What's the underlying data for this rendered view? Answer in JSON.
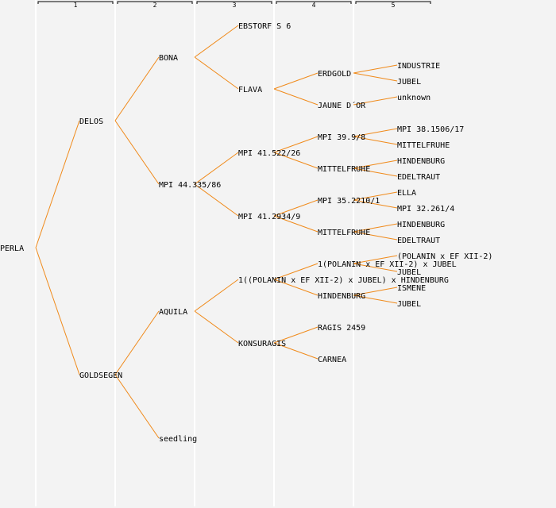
{
  "colors": {
    "background": "#f3f3f3",
    "link": "#f08a1a",
    "column_line": "#ffffff",
    "text": "#000000"
  },
  "columns": [
    "1",
    "2",
    "3",
    "4",
    "5"
  ],
  "tree": {
    "name": "PERLA",
    "children": [
      {
        "name": "DELOS",
        "children": [
          {
            "name": "BONA",
            "children": [
              {
                "name": "EBSTORF S 6"
              },
              {
                "name": "FLAVA",
                "children": [
                  {
                    "name": "ERDGOLD",
                    "children": [
                      {
                        "name": "INDUSTRIE"
                      },
                      {
                        "name": "JUBEL"
                      }
                    ]
                  },
                  {
                    "name": "JAUNE D´OR",
                    "children": [
                      {
                        "name": "unknown"
                      }
                    ]
                  }
                ]
              }
            ]
          },
          {
            "name": "MPI 44.335/86",
            "children": [
              {
                "name": "MPI 41.522/26",
                "children": [
                  {
                    "name": "MPI 39.9/8",
                    "children": [
                      {
                        "name": "MPI 38.1506/17"
                      },
                      {
                        "name": "MITTELFRUHE"
                      }
                    ]
                  },
                  {
                    "name": "MITTELFRUHE",
                    "children": [
                      {
                        "name": "HINDENBURG"
                      },
                      {
                        "name": "EDELTRAUT"
                      }
                    ]
                  }
                ]
              },
              {
                "name": "MPI 41.2934/9",
                "children": [
                  {
                    "name": "MPI 35.2210/1",
                    "children": [
                      {
                        "name": "ELLA"
                      },
                      {
                        "name": "MPI 32.261/4"
                      }
                    ]
                  },
                  {
                    "name": "MITTELFRUHE",
                    "children": [
                      {
                        "name": "HINDENBURG"
                      },
                      {
                        "name": "EDELTRAUT"
                      }
                    ]
                  }
                ]
              }
            ]
          }
        ]
      },
      {
        "name": "GOLDSEGEN",
        "children": [
          {
            "name": "AQUILA",
            "children": [
              {
                "name": "1((POLANIN x EF XII-2) x JUBEL) x HINDENBURG",
                "children": [
                  {
                    "name": "1(POLANIN x EF XII-2) x JUBEL",
                    "children": [
                      {
                        "name": "(POLANIN x EF XII-2)"
                      },
                      {
                        "name": "JUBEL"
                      }
                    ]
                  },
                  {
                    "name": "HINDENBURG",
                    "children": [
                      {
                        "name": "ISMENE"
                      },
                      {
                        "name": "JUBEL"
                      }
                    ]
                  }
                ]
              },
              {
                "name": "KONSURAGIS",
                "children": [
                  {
                    "name": "RAGIS 2459"
                  },
                  {
                    "name": "CARNEA"
                  }
                ]
              }
            ]
          },
          {
            "name": "seedling"
          }
        ]
      }
    ]
  }
}
